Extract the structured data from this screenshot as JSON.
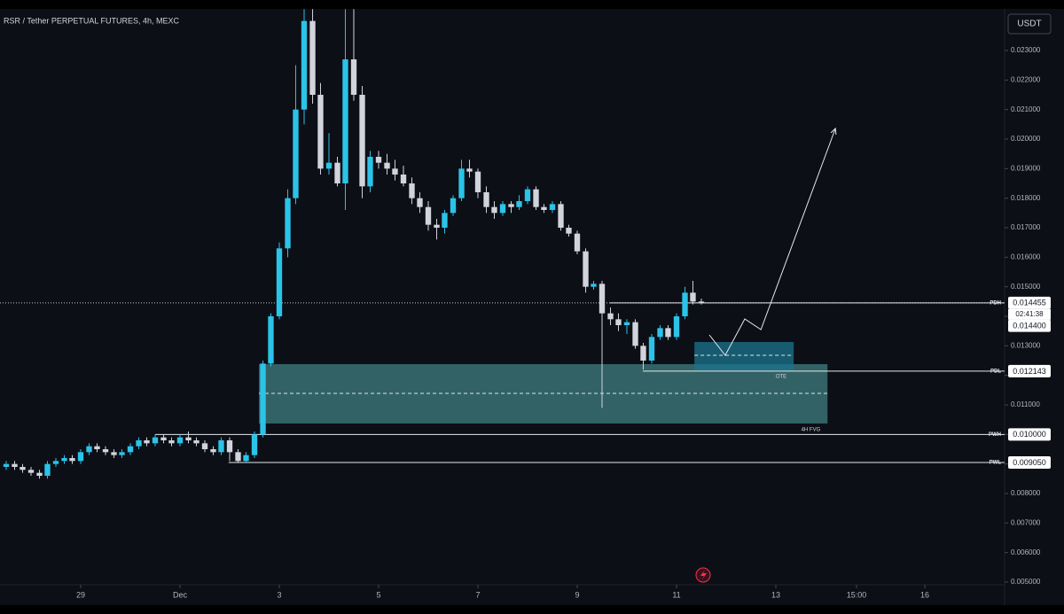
{
  "chart_data": {
    "type": "candlestick",
    "title": "RSR / Tether PERPETUAL FUTURES, 4h, MEXC",
    "currency": "USDT",
    "colors": {
      "up": "#2cc3e8",
      "down": "#d1d4dc"
    },
    "xlim": [
      -2.625,
      17.607
    ],
    "ylim": [
      0.00491,
      0.02441
    ],
    "xticks": [
      {
        "value": -1,
        "label": "29"
      },
      {
        "value": 1,
        "label": "Dec"
      },
      3,
      5,
      7,
      9,
      11,
      13,
      {
        "value": 14.625,
        "label": "15:00"
      },
      16
    ],
    "yticks": [
      {
        "value": 0.005,
        "label": "0.005000"
      },
      {
        "value": 0.006,
        "label": "0.006000"
      },
      {
        "value": 0.007,
        "label": "0.007000"
      },
      {
        "value": 0.008,
        "label": "0.008000"
      },
      {
        "value": 0.009,
        "label": "0.009000"
      },
      {
        "value": 0.01,
        "label": "0.010000"
      },
      {
        "value": 0.011,
        "label": "0.011000"
      },
      {
        "value": 0.012,
        "label": "0.012000"
      },
      {
        "value": 0.013,
        "label": "0.013000"
      },
      {
        "value": 0.014,
        "label": "0.014000"
      },
      {
        "value": 0.015,
        "label": "0.015000"
      },
      {
        "value": 0.016,
        "label": "0.016000"
      },
      {
        "value": 0.017,
        "label": "0.017000"
      },
      {
        "value": 0.018,
        "label": "0.018000"
      },
      {
        "value": 0.019,
        "label": "0.019000"
      },
      {
        "value": 0.02,
        "label": "0.020000"
      },
      {
        "value": 0.021,
        "label": "0.021000"
      },
      {
        "value": 0.022,
        "label": "0.022000"
      },
      {
        "value": 0.023,
        "label": "0.023000"
      }
    ],
    "candles": [
      {
        "x": -2.5,
        "open": 0.0089,
        "high": 0.0091,
        "low": 0.0088,
        "close": 0.009
      },
      {
        "x": -2.33,
        "open": 0.009,
        "high": 0.0091,
        "low": 0.0088,
        "close": 0.0089
      },
      {
        "x": -2.17,
        "open": 0.0089,
        "high": 0.009,
        "low": 0.0087,
        "close": 0.0088
      },
      {
        "x": -2,
        "open": 0.0088,
        "high": 0.0089,
        "low": 0.0086,
        "close": 0.0087
      },
      {
        "x": -1.83,
        "open": 0.0087,
        "high": 0.0088,
        "low": 0.0085,
        "close": 0.0086
      },
      {
        "x": -1.67,
        "open": 0.0086,
        "high": 0.0091,
        "low": 0.0085,
        "close": 0.009
      },
      {
        "x": -1.5,
        "open": 0.009,
        "high": 0.0092,
        "low": 0.0089,
        "close": 0.0091
      },
      {
        "x": -1.33,
        "open": 0.0091,
        "high": 0.0093,
        "low": 0.009,
        "close": 0.0092
      },
      {
        "x": -1.17,
        "open": 0.0092,
        "high": 0.0093,
        "low": 0.009,
        "close": 0.0091
      },
      {
        "x": -1,
        "open": 0.0091,
        "high": 0.0095,
        "low": 0.009,
        "close": 0.0094
      },
      {
        "x": -0.83,
        "open": 0.0094,
        "high": 0.0097,
        "low": 0.0093,
        "close": 0.0096
      },
      {
        "x": -0.67,
        "open": 0.0096,
        "high": 0.0097,
        "low": 0.0094,
        "close": 0.0095
      },
      {
        "x": -0.5,
        "open": 0.0095,
        "high": 0.0096,
        "low": 0.0093,
        "close": 0.0094
      },
      {
        "x": -0.33,
        "open": 0.0094,
        "high": 0.0095,
        "low": 0.0092,
        "close": 0.0093
      },
      {
        "x": -0.17,
        "open": 0.0093,
        "high": 0.0095,
        "low": 0.0092,
        "close": 0.0094
      },
      {
        "x": 0,
        "open": 0.0094,
        "high": 0.0097,
        "low": 0.0093,
        "close": 0.0096
      },
      {
        "x": 0.17,
        "open": 0.0096,
        "high": 0.0099,
        "low": 0.0095,
        "close": 0.0098
      },
      {
        "x": 0.33,
        "open": 0.0098,
        "high": 0.0099,
        "low": 0.0096,
        "close": 0.0097
      },
      {
        "x": 0.5,
        "open": 0.0097,
        "high": 0.01,
        "low": 0.0096,
        "close": 0.0099
      },
      {
        "x": 0.67,
        "open": 0.0099,
        "high": 0.01,
        "low": 0.0097,
        "close": 0.0098
      },
      {
        "x": 0.83,
        "open": 0.0098,
        "high": 0.0099,
        "low": 0.0096,
        "close": 0.0097
      },
      {
        "x": 1,
        "open": 0.0097,
        "high": 0.01,
        "low": 0.0096,
        "close": 0.0099
      },
      {
        "x": 1.17,
        "open": 0.0099,
        "high": 0.0101,
        "low": 0.0097,
        "close": 0.0098
      },
      {
        "x": 1.33,
        "open": 0.0098,
        "high": 0.0099,
        "low": 0.0096,
        "close": 0.0097
      },
      {
        "x": 1.5,
        "open": 0.0097,
        "high": 0.0098,
        "low": 0.0094,
        "close": 0.0095
      },
      {
        "x": 1.67,
        "open": 0.0095,
        "high": 0.0096,
        "low": 0.0093,
        "close": 0.0094
      },
      {
        "x": 1.83,
        "open": 0.0094,
        "high": 0.0099,
        "low": 0.0093,
        "close": 0.0098
      },
      {
        "x": 2,
        "open": 0.0098,
        "high": 0.0099,
        "low": 0.0091,
        "close": 0.0094
      },
      {
        "x": 2.17,
        "open": 0.0094,
        "high": 0.0095,
        "low": 0.00905,
        "close": 0.0091
      },
      {
        "x": 2.33,
        "open": 0.0091,
        "high": 0.0094,
        "low": 0.00905,
        "close": 0.0093
      },
      {
        "x": 2.5,
        "open": 0.0093,
        "high": 0.0101,
        "low": 0.0092,
        "close": 0.01
      },
      {
        "x": 2.67,
        "open": 0.01,
        "high": 0.0125,
        "low": 0.0099,
        "close": 0.0124
      },
      {
        "x": 2.83,
        "open": 0.0124,
        "high": 0.0141,
        "low": 0.0123,
        "close": 0.014
      },
      {
        "x": 3,
        "open": 0.014,
        "high": 0.0165,
        "low": 0.0139,
        "close": 0.0163
      },
      {
        "x": 3.17,
        "open": 0.0163,
        "high": 0.0183,
        "low": 0.016,
        "close": 0.018
      },
      {
        "x": 3.33,
        "open": 0.018,
        "high": 0.0225,
        "low": 0.0178,
        "close": 0.021
      },
      {
        "x": 3.5,
        "open": 0.021,
        "high": 0.0244,
        "low": 0.0205,
        "close": 0.024
      },
      {
        "x": 3.67,
        "open": 0.024,
        "high": 0.0244,
        "low": 0.0212,
        "close": 0.0215
      },
      {
        "x": 3.83,
        "open": 0.0215,
        "high": 0.0219,
        "low": 0.0188,
        "close": 0.019
      },
      {
        "x": 4,
        "open": 0.019,
        "high": 0.0202,
        "low": 0.0188,
        "close": 0.0192
      },
      {
        "x": 4.17,
        "open": 0.0192,
        "high": 0.0194,
        "low": 0.0184,
        "close": 0.0185
      },
      {
        "x": 4.33,
        "open": 0.0185,
        "high": 0.0244,
        "low": 0.0176,
        "close": 0.0227
      },
      {
        "x": 4.5,
        "open": 0.0227,
        "high": 0.0244,
        "low": 0.0213,
        "close": 0.0215
      },
      {
        "x": 4.67,
        "open": 0.0215,
        "high": 0.0218,
        "low": 0.018,
        "close": 0.0184
      },
      {
        "x": 4.83,
        "open": 0.0184,
        "high": 0.0196,
        "low": 0.0182,
        "close": 0.0194
      },
      {
        "x": 5,
        "open": 0.0194,
        "high": 0.0196,
        "low": 0.019,
        "close": 0.0192
      },
      {
        "x": 5.17,
        "open": 0.0192,
        "high": 0.0195,
        "low": 0.0188,
        "close": 0.019
      },
      {
        "x": 5.33,
        "open": 0.019,
        "high": 0.0193,
        "low": 0.0186,
        "close": 0.0188
      },
      {
        "x": 5.5,
        "open": 0.0188,
        "high": 0.0191,
        "low": 0.0184,
        "close": 0.0185
      },
      {
        "x": 5.67,
        "open": 0.0185,
        "high": 0.0187,
        "low": 0.0178,
        "close": 0.018
      },
      {
        "x": 5.83,
        "open": 0.018,
        "high": 0.0182,
        "low": 0.0175,
        "close": 0.0177
      },
      {
        "x": 6,
        "open": 0.0177,
        "high": 0.0179,
        "low": 0.0169,
        "close": 0.0171
      },
      {
        "x": 6.17,
        "open": 0.0171,
        "high": 0.0173,
        "low": 0.0166,
        "close": 0.017
      },
      {
        "x": 6.33,
        "open": 0.017,
        "high": 0.0176,
        "low": 0.0168,
        "close": 0.0175
      },
      {
        "x": 6.5,
        "open": 0.0175,
        "high": 0.0181,
        "low": 0.0174,
        "close": 0.018
      },
      {
        "x": 6.67,
        "open": 0.018,
        "high": 0.0193,
        "low": 0.0179,
        "close": 0.019
      },
      {
        "x": 6.83,
        "open": 0.019,
        "high": 0.0193,
        "low": 0.0187,
        "close": 0.0189
      },
      {
        "x": 7,
        "open": 0.0189,
        "high": 0.019,
        "low": 0.018,
        "close": 0.0182
      },
      {
        "x": 7.17,
        "open": 0.0182,
        "high": 0.0184,
        "low": 0.0175,
        "close": 0.0177
      },
      {
        "x": 7.33,
        "open": 0.0177,
        "high": 0.0179,
        "low": 0.0173,
        "close": 0.0175
      },
      {
        "x": 7.5,
        "open": 0.0175,
        "high": 0.0179,
        "low": 0.0174,
        "close": 0.0178
      },
      {
        "x": 7.67,
        "open": 0.0178,
        "high": 0.0179,
        "low": 0.0175,
        "close": 0.0177
      },
      {
        "x": 7.83,
        "open": 0.0177,
        "high": 0.0181,
        "low": 0.0176,
        "close": 0.0179
      },
      {
        "x": 8,
        "open": 0.0179,
        "high": 0.0184,
        "low": 0.0178,
        "close": 0.0183
      },
      {
        "x": 8.17,
        "open": 0.0183,
        "high": 0.0184,
        "low": 0.0176,
        "close": 0.0177
      },
      {
        "x": 8.33,
        "open": 0.0177,
        "high": 0.0178,
        "low": 0.0175,
        "close": 0.0176
      },
      {
        "x": 8.5,
        "open": 0.0176,
        "high": 0.0179,
        "low": 0.0175,
        "close": 0.0178
      },
      {
        "x": 8.67,
        "open": 0.0178,
        "high": 0.0179,
        "low": 0.0169,
        "close": 0.017
      },
      {
        "x": 8.83,
        "open": 0.017,
        "high": 0.0171,
        "low": 0.0167,
        "close": 0.0168
      },
      {
        "x": 9,
        "open": 0.0168,
        "high": 0.0169,
        "low": 0.0161,
        "close": 0.0162
      },
      {
        "x": 9.17,
        "open": 0.0162,
        "high": 0.0163,
        "low": 0.0148,
        "close": 0.015
      },
      {
        "x": 9.33,
        "open": 0.015,
        "high": 0.0152,
        "low": 0.0149,
        "close": 0.0151
      },
      {
        "x": 9.5,
        "open": 0.0151,
        "high": 0.0152,
        "low": 0.0109,
        "close": 0.0141
      },
      {
        "x": 9.67,
        "open": 0.0141,
        "high": 0.0143,
        "low": 0.0137,
        "close": 0.0139
      },
      {
        "x": 9.83,
        "open": 0.0139,
        "high": 0.0141,
        "low": 0.0135,
        "close": 0.0137
      },
      {
        "x": 10,
        "open": 0.0137,
        "high": 0.0139,
        "low": 0.0134,
        "close": 0.0138
      },
      {
        "x": 10.17,
        "open": 0.0138,
        "high": 0.0139,
        "low": 0.0129,
        "close": 0.013
      },
      {
        "x": 10.33,
        "open": 0.013,
        "high": 0.0131,
        "low": 0.0122,
        "close": 0.0125
      },
      {
        "x": 10.5,
        "open": 0.0125,
        "high": 0.0134,
        "low": 0.0124,
        "close": 0.0133
      },
      {
        "x": 10.67,
        "open": 0.0133,
        "high": 0.0137,
        "low": 0.0132,
        "close": 0.0136
      },
      {
        "x": 10.83,
        "open": 0.0136,
        "high": 0.0137,
        "low": 0.0132,
        "close": 0.0133
      },
      {
        "x": 11,
        "open": 0.0133,
        "high": 0.0141,
        "low": 0.0132,
        "close": 0.014
      },
      {
        "x": 11.17,
        "open": 0.014,
        "high": 0.015,
        "low": 0.0139,
        "close": 0.0148
      },
      {
        "x": 11.33,
        "open": 0.0148,
        "high": 0.0152,
        "low": 0.0144,
        "close": 0.0145
      },
      {
        "x": 11.5,
        "open": 0.0145,
        "high": 0.0146,
        "low": 0.0144,
        "close": 0.014455
      }
    ],
    "last_price": {
      "value": 0.014455,
      "countdown": "02:41:38"
    },
    "price_tags": [
      {
        "value": 0.0144,
        "label": "0.014400"
      }
    ],
    "levels": [
      {
        "name": "PDH",
        "value": 0.014455,
        "start": 9.66
      },
      {
        "name": "PDL",
        "value": 0.012143,
        "start": 10.32
      },
      {
        "name": "PWH",
        "value": 0.01,
        "label": "0.010000",
        "start": 0.5
      },
      {
        "name": "PWL",
        "value": 0.00905,
        "label": "0.009050",
        "start": 1.98
      }
    ],
    "zones": [
      {
        "label": "4H FVG",
        "x": [
          2.59,
          14.04
        ],
        "y": [
          0.01037,
          0.01238
        ],
        "mid": 0.01139,
        "color": "#3f7f80"
      },
      {
        "label": "OTE",
        "x": [
          11.36,
          13.36
        ],
        "y": [
          0.01217,
          0.01313
        ],
        "mid": 0.01268,
        "color": "#1b7590"
      }
    ],
    "projection": {
      "x": [
        11.66,
        11.98,
        12.375,
        12.7,
        14.2
      ],
      "y": [
        0.01337,
        0.01268,
        0.01391,
        0.01355,
        0.02036
      ]
    }
  }
}
